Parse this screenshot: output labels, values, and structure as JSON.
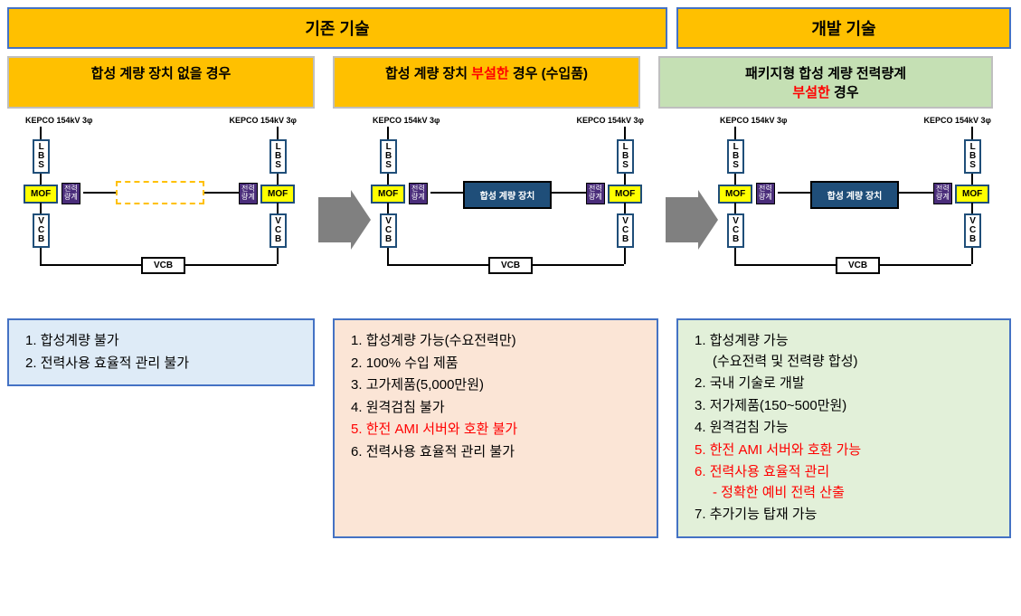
{
  "headers": {
    "existing": "기존 기술",
    "developed": "개발 기술"
  },
  "subheaders": {
    "no_device": "합성 계량 장치 없을 경우",
    "imported_prefix": "합성 계량 장치 ",
    "imported_red": "부설한",
    "imported_suffix": " 경우 (수입품)",
    "package_prefix": "패키지형 합성 계량 전력량계",
    "package_red": "부설한",
    "package_suffix": "  경우"
  },
  "diagram": {
    "kepco": "KEPCO 154kV 3φ",
    "lbs": "L\nB\nS",
    "mof": "MOF",
    "meter": "전력\n량계",
    "vcb_v": "V\nC\nB",
    "vcb_h": "VCB",
    "synth_device": "합성 계량 장치",
    "colors": {
      "header_bg": "#ffc000",
      "header_border": "#4472c4",
      "green_bg": "#c5e0b4",
      "mof_bg": "#ffff00",
      "box_border": "#1f4e79",
      "meter_bg": "#4a2d7a",
      "synth_bg": "#1f4e79",
      "arrow": "#808080",
      "desc1_bg": "#deebf7",
      "desc2_bg": "#fbe5d6",
      "desc3_bg": "#e2f0d9"
    }
  },
  "desc1": {
    "items": [
      {
        "text": "합성계량 불가",
        "red": false
      },
      {
        "text": "전력사용 효율적 관리 불가",
        "red": false
      }
    ]
  },
  "desc2": {
    "items": [
      {
        "text": "합성계량 가능(수요전력만)",
        "red": false
      },
      {
        "text": "100% 수입 제품",
        "red": false
      },
      {
        "text": "고가제품(5,000만원)",
        "red": false
      },
      {
        "text": "원격검침 불가",
        "red": false
      },
      {
        "text": "한전 AMI 서버와 호환 불가",
        "red": true
      },
      {
        "text": "전력사용 효율적 관리 불가",
        "red": false
      }
    ]
  },
  "desc3": {
    "items": [
      {
        "text": "합성계량 가능",
        "sub": "(수요전력 및 전력량 합성)",
        "red": false
      },
      {
        "text": "국내 기술로 개발",
        "red": false
      },
      {
        "text": "저가제품(150~500만원)",
        "red": false
      },
      {
        "text": "원격검침 가능",
        "red": false
      },
      {
        "text": "한전 AMI 서버와 호환 가능",
        "red": true
      },
      {
        "text": "전력사용 효율적 관리",
        "sub": "- 정확한 예비 전력 산출",
        "red": true,
        "sub_red": true
      },
      {
        "text": "추가기능 탑재 가능",
        "red": false
      }
    ]
  }
}
